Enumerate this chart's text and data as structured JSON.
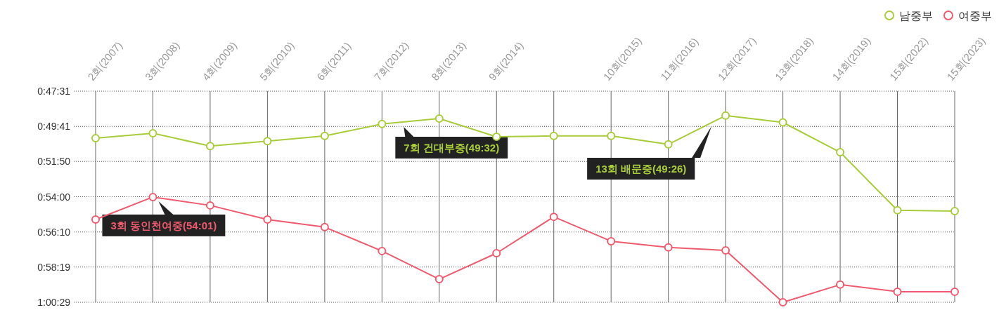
{
  "chart_data": {
    "type": "line",
    "categories": [
      "2회(2007)",
      "3회(2008)",
      "4회(2009)",
      "5회(2010)",
      "6회(2011)",
      "7회(2012)",
      "8회(2013)",
      "9회(2014)",
      null,
      "10회(2015)",
      "11회(2016)",
      "12회(2017)",
      "13회(2018)",
      "14회(2019)",
      "15회(2022)",
      "15회(2023)"
    ],
    "series": [
      {
        "name": "남중부",
        "color": "#a8cc3a",
        "values": [
          3024,
          3006,
          3053,
          3035,
          3016,
          2972,
          2952,
          3019,
          3016,
          3016,
          3047,
          2941,
          2966,
          3076,
          3290,
          3293
        ]
      },
      {
        "name": "여중부",
        "color": "#f05a6e",
        "values": [
          3324,
          3241,
          3272,
          3324,
          3352,
          3440,
          3544,
          3448,
          3314,
          3404,
          3427,
          3438,
          3629,
          3564,
          3590,
          3590
        ]
      }
    ],
    "ylim": [
      3629,
      2851
    ],
    "yticks": [
      {
        "value": 2851,
        "label": "0:47:31"
      },
      {
        "value": 2981,
        "label": "0:49:41"
      },
      {
        "value": 3110,
        "label": "0:51:50"
      },
      {
        "value": 3240,
        "label": "0:54:00"
      },
      {
        "value": 3370,
        "label": "0:56:10"
      },
      {
        "value": 3499,
        "label": "0:58:19"
      },
      {
        "value": 3629,
        "label": "1:00:29"
      }
    ],
    "grid": true,
    "legend": "top right",
    "marker": "circle",
    "annotations": [
      {
        "text": "3회 동인천여중(54:01)",
        "x": "3회(2008)",
        "y": 3241
      },
      "7회 건대부중(49:32)",
      "13회 배문중(49:26)"
    ]
  }
}
